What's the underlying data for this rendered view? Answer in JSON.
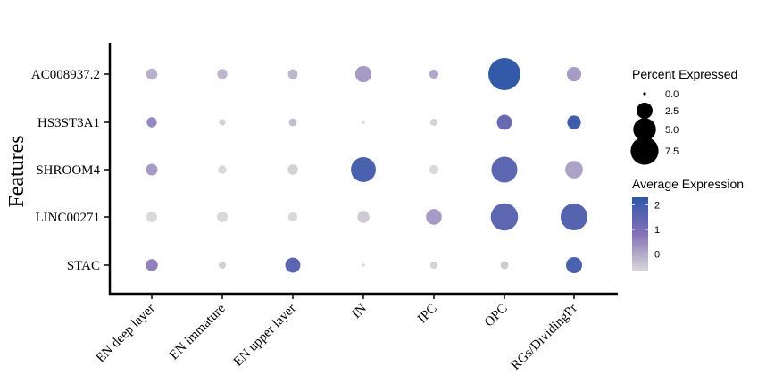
{
  "chart_data": {
    "type": "dotplot",
    "title": "",
    "xlabel": "",
    "ylabel": "Features",
    "features": [
      "AC008937.2",
      "HS3ST3A1",
      "SHROOM4",
      "LINC00271",
      "STAC"
    ],
    "groups": [
      "EN deep layer",
      "EN immature",
      "EN upper layer",
      "IN",
      "IPC",
      "OPC",
      "RGs/DividingPr"
    ],
    "percent_expressed": [
      [
        1.2,
        1.0,
        0.9,
        2.6,
        0.8,
        10.0,
        2.0
      ],
      [
        1.0,
        0.4,
        0.6,
        0.1,
        0.5,
        2.2,
        1.8
      ],
      [
        1.3,
        0.7,
        1.0,
        6.0,
        0.8,
        6.5,
        3.0
      ],
      [
        1.1,
        1.1,
        0.8,
        1.4,
        2.4,
        7.2,
        7.0
      ],
      [
        1.4,
        0.5,
        2.2,
        0.1,
        0.5,
        0.6,
        2.5
      ]
    ],
    "avg_expression": [
      [
        -0.1,
        -0.2,
        -0.2,
        0.2,
        0.0,
        2.2,
        0.2
      ],
      [
        0.5,
        -0.6,
        -0.3,
        -0.7,
        -0.6,
        1.3,
        2.0
      ],
      [
        0.2,
        -0.7,
        -0.6,
        1.8,
        -0.7,
        1.5,
        0.1
      ],
      [
        -0.7,
        -0.7,
        -0.7,
        -0.5,
        0.2,
        1.5,
        1.6
      ],
      [
        0.6,
        -0.6,
        1.5,
        -0.7,
        -0.6,
        -0.5,
        1.8
      ]
    ],
    "size_legend": {
      "title": "Percent Expressed",
      "breaks": [
        0.0,
        2.5,
        5.0,
        7.5
      ],
      "labels": [
        "0.0",
        "2.5",
        "5.0",
        "7.5"
      ]
    },
    "color_legend": {
      "title": "Average Expression",
      "range": [
        -0.7,
        2.3
      ],
      "breaks": [
        2,
        1,
        0
      ],
      "labels": [
        "2",
        "1",
        "0"
      ],
      "low_color": "#d9d9d9",
      "high_color": "#2d58a8"
    },
    "grid": false
  }
}
